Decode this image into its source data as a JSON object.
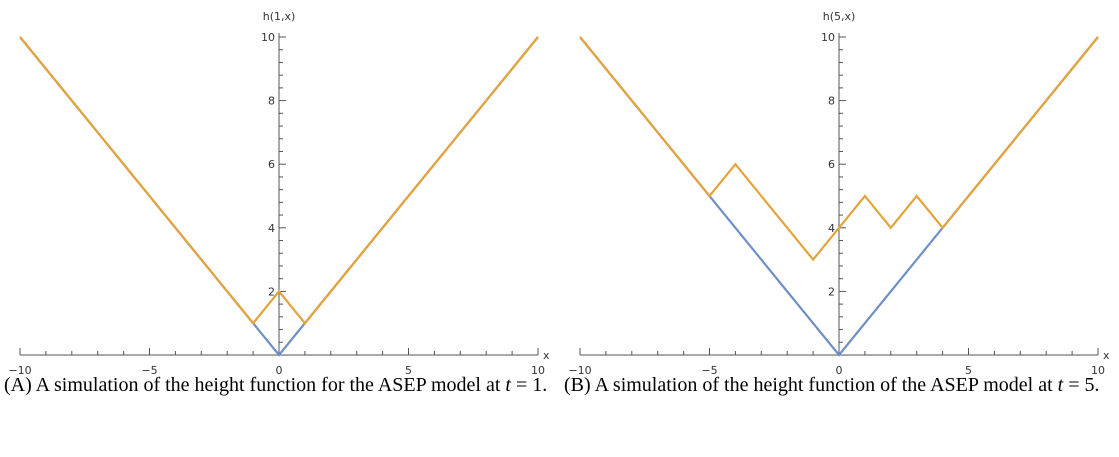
{
  "colors": {
    "baseline": "#6f8fc8",
    "height": "#e5a33c",
    "axis": "#555555"
  },
  "chart_data": [
    {
      "type": "line",
      "ylabel": "h(1,x)",
      "xlabel": "x",
      "xlim": [
        -10,
        10
      ],
      "ylim": [
        0,
        10
      ],
      "xticks": [
        -10,
        -5,
        0,
        5,
        10
      ],
      "yticks": [
        2,
        4,
        6,
        8,
        10
      ],
      "series": [
        {
          "color": "#6f8fc8",
          "x": [
            -10,
            0,
            10
          ],
          "y": [
            10,
            0,
            10
          ]
        },
        {
          "color": "#e5a33c",
          "x": [
            -10,
            -1,
            0,
            1,
            10
          ],
          "y": [
            10,
            1,
            2,
            1,
            10
          ]
        }
      ]
    },
    {
      "type": "line",
      "ylabel": "h(5,x)",
      "xlabel": "x",
      "xlim": [
        -10,
        10
      ],
      "ylim": [
        0,
        10
      ],
      "xticks": [
        -10,
        -5,
        0,
        5,
        10
      ],
      "yticks": [
        2,
        4,
        6,
        8,
        10
      ],
      "series": [
        {
          "color": "#6f8fc8",
          "x": [
            -10,
            0,
            10
          ],
          "y": [
            10,
            0,
            10
          ]
        },
        {
          "color": "#e5a33c",
          "x": [
            -10,
            -5,
            -4,
            -1,
            0,
            1,
            2,
            3,
            4,
            10
          ],
          "y": [
            10,
            5,
            6,
            3,
            4,
            5,
            4,
            5,
            4,
            10
          ]
        }
      ]
    }
  ],
  "captions": [
    {
      "tag": "(A)",
      "text_before": " A simulation of the height function for the ASEP model at ",
      "math": "t",
      "text_after": " = 1."
    },
    {
      "tag": "(B)",
      "text_before": " A simulation of the height function of the ASEP model at ",
      "math": "t",
      "text_after": " = 5."
    }
  ]
}
